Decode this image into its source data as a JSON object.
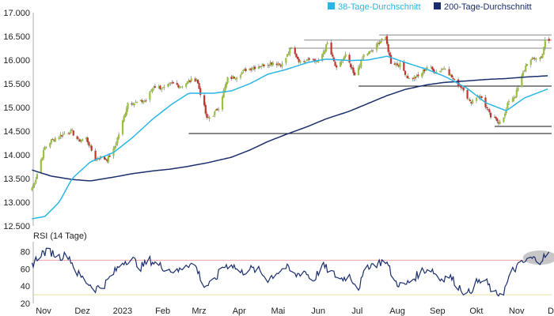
{
  "chart_data": [
    {
      "type": "candlestick",
      "legend": {
        "placement": "top-right",
        "entries": [
          {
            "label": "38-Tage-Durchschnitt",
            "color": "#29b6e6"
          },
          {
            "label": "200-Tage-Durchschnitt",
            "color": "#1a2e6e"
          }
        ]
      },
      "y_ticks": [
        "17.000",
        "16.500",
        "16.000",
        "15.500",
        "15.000",
        "14.500",
        "14.000",
        "13.500",
        "13.000",
        "12.500"
      ],
      "ylim": [
        12500,
        17000
      ],
      "x_ticks": [
        "Nov",
        "Dez",
        "2023",
        "Feb",
        "Mrz",
        "Apr",
        "Mai",
        "Jun",
        "Jul",
        "Aug",
        "Sep",
        "Okt",
        "Nov",
        "Dez"
      ],
      "x_start": "2022-11-01",
      "x_end": "2023-12-06",
      "colors": {
        "up": "#9bc23c",
        "down": "#c4332b",
        "ma38": "#29b6e6",
        "ma200": "#1a2e6e",
        "support": "#111111",
        "resistance": "#888888"
      },
      "price_anchors": [
        [
          "2022-10-31",
          13300
        ],
        [
          "2022-11-03",
          13500
        ],
        [
          "2022-11-07",
          13900
        ],
        [
          "2022-11-10",
          14150
        ],
        [
          "2022-11-15",
          14300
        ],
        [
          "2022-11-21",
          14400
        ],
        [
          "2022-11-28",
          14480
        ],
        [
          "2022-12-01",
          14480
        ],
        [
          "2022-12-06",
          14300
        ],
        [
          "2022-12-12",
          14350
        ],
        [
          "2022-12-19",
          13900
        ],
        [
          "2022-12-23",
          13950
        ],
        [
          "2022-12-28",
          13900
        ],
        [
          "2023-01-02",
          14100
        ],
        [
          "2023-01-05",
          14350
        ],
        [
          "2023-01-09",
          14700
        ],
        [
          "2023-01-13",
          15100
        ],
        [
          "2023-01-20",
          15100
        ],
        [
          "2023-01-27",
          15150
        ],
        [
          "2023-02-02",
          15450
        ],
        [
          "2023-02-10",
          15400
        ],
        [
          "2023-02-16",
          15500
        ],
        [
          "2023-02-23",
          15450
        ],
        [
          "2023-03-01",
          15550
        ],
        [
          "2023-03-07",
          15600
        ],
        [
          "2023-03-13",
          15000
        ],
        [
          "2023-03-15",
          14750
        ],
        [
          "2023-03-20",
          14850
        ],
        [
          "2023-03-24",
          15000
        ],
        [
          "2023-03-31",
          15600
        ],
        [
          "2023-04-06",
          15650
        ],
        [
          "2023-04-14",
          15800
        ],
        [
          "2023-04-21",
          15850
        ],
        [
          "2023-04-28",
          15900
        ],
        [
          "2023-05-05",
          15950
        ],
        [
          "2023-05-12",
          15900
        ],
        [
          "2023-05-19",
          16250
        ],
        [
          "2023-05-26",
          15950
        ],
        [
          "2023-06-02",
          16050
        ],
        [
          "2023-06-09",
          15950
        ],
        [
          "2023-06-16",
          16350
        ],
        [
          "2023-06-23",
          15800
        ],
        [
          "2023-06-30",
          16100
        ],
        [
          "2023-07-07",
          15650
        ],
        [
          "2023-07-14",
          16100
        ],
        [
          "2023-07-21",
          16200
        ],
        [
          "2023-07-28",
          16450
        ],
        [
          "2023-07-31",
          16450
        ],
        [
          "2023-08-04",
          15950
        ],
        [
          "2023-08-11",
          15900
        ],
        [
          "2023-08-18",
          15600
        ],
        [
          "2023-08-25",
          15650
        ],
        [
          "2023-09-01",
          15850
        ],
        [
          "2023-09-08",
          15750
        ],
        [
          "2023-09-15",
          15850
        ],
        [
          "2023-09-22",
          15550
        ],
        [
          "2023-09-29",
          15400
        ],
        [
          "2023-10-04",
          15100
        ],
        [
          "2023-10-10",
          15250
        ],
        [
          "2023-10-13",
          15200
        ],
        [
          "2023-10-20",
          14800
        ],
        [
          "2023-10-26",
          14700
        ],
        [
          "2023-10-31",
          14850
        ],
        [
          "2023-11-03",
          15150
        ],
        [
          "2023-11-08",
          15250
        ],
        [
          "2023-11-13",
          15650
        ],
        [
          "2023-11-17",
          15950
        ],
        [
          "2023-11-24",
          16050
        ],
        [
          "2023-11-28",
          16050
        ],
        [
          "2023-12-01",
          16400
        ],
        [
          "2023-12-04",
          16380
        ]
      ],
      "ma38_anchors": [
        [
          "2022-10-31",
          12650
        ],
        [
          "2022-11-10",
          12700
        ],
        [
          "2022-11-21",
          13000
        ],
        [
          "2022-12-01",
          13500
        ],
        [
          "2022-12-15",
          13850
        ],
        [
          "2023-01-02",
          14050
        ],
        [
          "2023-01-16",
          14350
        ],
        [
          "2023-02-01",
          14750
        ],
        [
          "2023-02-15",
          15050
        ],
        [
          "2023-03-01",
          15300
        ],
        [
          "2023-03-20",
          15300
        ],
        [
          "2023-04-03",
          15350
        ],
        [
          "2023-04-17",
          15500
        ],
        [
          "2023-05-01",
          15700
        ],
        [
          "2023-05-15",
          15800
        ],
        [
          "2023-06-01",
          15950
        ],
        [
          "2023-06-15",
          16020
        ],
        [
          "2023-07-03",
          15990
        ],
        [
          "2023-07-17",
          16000
        ],
        [
          "2023-08-01",
          16080
        ],
        [
          "2023-08-15",
          15950
        ],
        [
          "2023-09-01",
          15800
        ],
        [
          "2023-09-15",
          15650
        ],
        [
          "2023-10-02",
          15400
        ],
        [
          "2023-10-16",
          15100
        ],
        [
          "2023-11-01",
          14930
        ],
        [
          "2023-11-15",
          15200
        ],
        [
          "2023-12-04",
          15400
        ]
      ],
      "ma200_anchors": [
        [
          "2022-10-31",
          13680
        ],
        [
          "2022-11-15",
          13550
        ],
        [
          "2022-12-01",
          13480
        ],
        [
          "2022-12-15",
          13450
        ],
        [
          "2023-01-02",
          13530
        ],
        [
          "2023-01-16",
          13600
        ],
        [
          "2023-02-01",
          13660
        ],
        [
          "2023-02-15",
          13700
        ],
        [
          "2023-03-01",
          13760
        ],
        [
          "2023-03-15",
          13830
        ],
        [
          "2023-04-03",
          13950
        ],
        [
          "2023-04-17",
          14100
        ],
        [
          "2023-05-01",
          14280
        ],
        [
          "2023-05-15",
          14430
        ],
        [
          "2023-06-01",
          14600
        ],
        [
          "2023-06-15",
          14760
        ],
        [
          "2023-07-03",
          14920
        ],
        [
          "2023-07-17",
          15080
        ],
        [
          "2023-08-01",
          15250
        ],
        [
          "2023-08-15",
          15380
        ],
        [
          "2023-09-01",
          15480
        ],
        [
          "2023-09-15",
          15530
        ],
        [
          "2023-10-02",
          15560
        ],
        [
          "2023-10-16",
          15590
        ],
        [
          "2023-11-01",
          15610
        ],
        [
          "2023-11-15",
          15640
        ],
        [
          "2023-12-04",
          15670
        ]
      ],
      "support_lines": [
        {
          "value": 14450,
          "from": "2023-03-01",
          "to": "2023-12-06"
        },
        {
          "value": 14600,
          "from": "2023-10-23",
          "to": "2023-12-06"
        },
        {
          "value": 15450,
          "from": "2023-07-10",
          "to": "2023-12-06"
        }
      ],
      "resistance_lines": [
        {
          "value": 16530,
          "from": "2023-07-26",
          "to": "2023-12-06"
        },
        {
          "value": 16420,
          "from": "2023-05-29",
          "to": "2023-12-06"
        },
        {
          "value": 16250,
          "from": "2023-05-17",
          "to": "2023-12-06"
        }
      ]
    },
    {
      "type": "line",
      "title": "RSI (14 Tage)",
      "y_ticks": [
        "80",
        "60",
        "40",
        "20"
      ],
      "ylim": [
        20,
        85
      ],
      "overbought": 70,
      "oversold": 30,
      "colors": {
        "line": "#1a2e6e",
        "overbought": "#e8a0a0",
        "oversold": "#e6e0a0",
        "highlight": "#bdbdbd"
      },
      "highlight": {
        "from": "2023-11-20",
        "to": "2023-12-04",
        "center_value": 73
      },
      "rsi_anchors": [
        [
          "2022-10-31",
          65
        ],
        [
          "2022-11-07",
          78
        ],
        [
          "2022-11-14",
          80
        ],
        [
          "2022-11-21",
          74
        ],
        [
          "2022-11-28",
          76
        ],
        [
          "2022-12-05",
          55
        ],
        [
          "2022-12-12",
          45
        ],
        [
          "2022-12-19",
          37
        ],
        [
          "2022-12-26",
          42
        ],
        [
          "2023-01-02",
          55
        ],
        [
          "2023-01-09",
          68
        ],
        [
          "2023-01-16",
          72
        ],
        [
          "2023-01-23",
          62
        ],
        [
          "2023-01-30",
          70
        ],
        [
          "2023-02-06",
          64
        ],
        [
          "2023-02-13",
          60
        ],
        [
          "2023-02-20",
          56
        ],
        [
          "2023-02-27",
          66
        ],
        [
          "2023-03-06",
          64
        ],
        [
          "2023-03-13",
          40
        ],
        [
          "2023-03-20",
          44
        ],
        [
          "2023-03-27",
          62
        ],
        [
          "2023-04-03",
          66
        ],
        [
          "2023-04-10",
          55
        ],
        [
          "2023-04-17",
          60
        ],
        [
          "2023-04-24",
          58
        ],
        [
          "2023-05-01",
          48
        ],
        [
          "2023-05-08",
          56
        ],
        [
          "2023-05-15",
          62
        ],
        [
          "2023-05-22",
          52
        ],
        [
          "2023-05-29",
          58
        ],
        [
          "2023-06-05",
          46
        ],
        [
          "2023-06-12",
          64
        ],
        [
          "2023-06-19",
          56
        ],
        [
          "2023-06-26",
          48
        ],
        [
          "2023-07-03",
          52
        ],
        [
          "2023-07-10",
          38
        ],
        [
          "2023-07-17",
          64
        ],
        [
          "2023-07-24",
          66
        ],
        [
          "2023-07-31",
          70
        ],
        [
          "2023-08-07",
          45
        ],
        [
          "2023-08-14",
          40
        ],
        [
          "2023-08-21",
          48
        ],
        [
          "2023-08-28",
          58
        ],
        [
          "2023-09-04",
          60
        ],
        [
          "2023-09-11",
          48
        ],
        [
          "2023-09-18",
          52
        ],
        [
          "2023-09-25",
          40
        ],
        [
          "2023-10-02",
          30
        ],
        [
          "2023-10-09",
          44
        ],
        [
          "2023-10-16",
          46
        ],
        [
          "2023-10-23",
          30
        ],
        [
          "2023-10-30",
          34
        ],
        [
          "2023-11-06",
          58
        ],
        [
          "2023-11-13",
          66
        ],
        [
          "2023-11-20",
          72
        ],
        [
          "2023-11-27",
          70
        ],
        [
          "2023-12-04",
          78
        ]
      ]
    }
  ]
}
